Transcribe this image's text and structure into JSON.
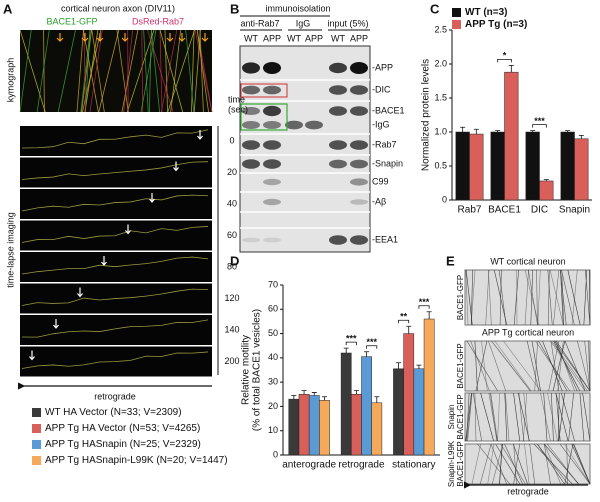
{
  "panels": {
    "a": {
      "letter": "A",
      "title": "cortical neuron axon (DIV11)",
      "green_label": "BACE1-GFP",
      "red_label": "DsRed-Rab7",
      "kymograph": "kymograph",
      "time_label": [
        "time",
        "(sec)"
      ],
      "times": [
        "0",
        "20",
        "40",
        "60",
        "80",
        "120",
        "140",
        "200"
      ],
      "side_label": "time-lapse imaging",
      "direction": "retrograde"
    },
    "b": {
      "letter": "B",
      "header": "immunoisolation",
      "groups": [
        "anti-Rab7",
        "IgG",
        "input (5%)"
      ],
      "lanes": [
        "WT",
        "APP",
        "WT",
        "APP",
        "WT",
        "APP"
      ],
      "bands": [
        "-APP",
        "-DIC",
        "-BACE1",
        "-IgG",
        "-Rab7",
        "-Snapin",
        "C99",
        "-Aβ",
        "-EEA1"
      ]
    },
    "c": {
      "letter": "C"
    },
    "d": {
      "letter": "D"
    },
    "e": {
      "letter": "E",
      "header1": "WT cortical neuron",
      "header2": "APP Tg cortical neuron",
      "side_labels": [
        [
          "BACE1-GFP"
        ],
        [
          "BACE1-GFP"
        ],
        [
          "Snapin",
          "BACE1-GFP"
        ],
        [
          "Snapin-L99K",
          "BACE1-GFP"
        ]
      ],
      "direction": "retrograde"
    }
  },
  "chart_data": [
    {
      "type": "bar",
      "ylabel": [
        "Normalized protein levels"
      ],
      "categories": [
        "Rab7",
        "BACE1",
        "DIC",
        "Snapin"
      ],
      "series": [
        {
          "name": "WT (n=3)",
          "color": "#111111",
          "values": [
            1,
            1,
            1,
            1
          ],
          "errors": [
            0.07,
            0.02,
            0.02,
            0.02
          ]
        },
        {
          "name": "APP Tg (n=3)",
          "color": "#d9605a",
          "values": [
            0.97,
            1.88,
            0.28,
            0.9
          ],
          "errors": [
            0.07,
            0.1,
            0.02,
            0.05
          ]
        }
      ],
      "ylim": [
        0,
        2.5
      ],
      "yticks": [
        0,
        0.5,
        {
          "value": 1,
          "label": "1.0"
        },
        1.5,
        {
          "value": 2,
          "label": "2.0"
        },
        2.5
      ],
      "annotations": [
        "*",
        "***"
      ],
      "legend": "top-left"
    },
    {
      "type": "bar",
      "ylabel": [
        "Relative motility",
        "(% of total BACE1 vesicles)"
      ],
      "categories": [
        "anterograde",
        "retrograde",
        "stationary"
      ],
      "series": [
        {
          "name": "WT HA Vector (N=33; V=2309)",
          "color": "#3a3a3a",
          "values": [
            23,
            42,
            35.5
          ],
          "errors": [
            1.5,
            2,
            2.5
          ]
        },
        {
          "name": "APP Tg HA Vector (N=53; V=4265)",
          "color": "#d9605a",
          "values": [
            25,
            25,
            50
          ],
          "errors": [
            1.5,
            1.5,
            3
          ]
        },
        {
          "name": "APP Tg HASnapin (N=25; V=2329)",
          "color": "#5b9bd5",
          "values": [
            24.5,
            40.5,
            35.5
          ],
          "errors": [
            1.2,
            2,
            1.5
          ]
        },
        {
          "name": "APP Tg HASnapin-L99K (N=20; V=1447)",
          "color": "#f5a95a",
          "values": [
            22.5,
            21.5,
            56
          ],
          "errors": [
            1.5,
            2.5,
            3
          ]
        }
      ],
      "ylim": [
        0,
        70
      ],
      "yticks": [
        0,
        10,
        20,
        30,
        40,
        50,
        60,
        70
      ],
      "annotations": [
        "***",
        "***",
        "**",
        "***"
      ],
      "legend": "bottom-left"
    }
  ]
}
